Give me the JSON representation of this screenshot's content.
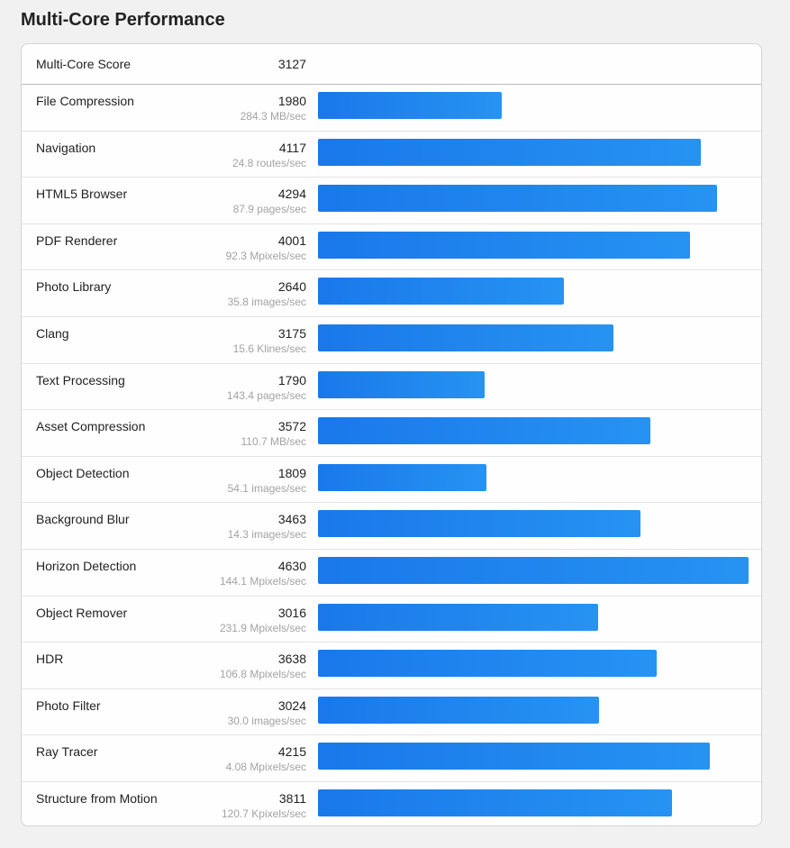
{
  "title": "Multi-Core Performance",
  "score": {
    "label": "Multi-Core Score",
    "value": "3127"
  },
  "max_value": 4630,
  "bar_color_start": "#1a78ea",
  "bar_color_end": "#2693f2",
  "rows": [
    {
      "name": "File Compression",
      "score": "1980",
      "rate": "284.3 MB/sec"
    },
    {
      "name": "Navigation",
      "score": "4117",
      "rate": "24.8 routes/sec"
    },
    {
      "name": "HTML5 Browser",
      "score": "4294",
      "rate": "87.9 pages/sec"
    },
    {
      "name": "PDF Renderer",
      "score": "4001",
      "rate": "92.3 Mpixels/sec"
    },
    {
      "name": "Photo Library",
      "score": "2640",
      "rate": "35.8 images/sec"
    },
    {
      "name": "Clang",
      "score": "3175",
      "rate": "15.6 Klines/sec"
    },
    {
      "name": "Text Processing",
      "score": "1790",
      "rate": "143.4 pages/sec"
    },
    {
      "name": "Asset Compression",
      "score": "3572",
      "rate": "110.7 MB/sec"
    },
    {
      "name": "Object Detection",
      "score": "1809",
      "rate": "54.1 images/sec"
    },
    {
      "name": "Background Blur",
      "score": "3463",
      "rate": "14.3 images/sec"
    },
    {
      "name": "Horizon Detection",
      "score": "4630",
      "rate": "144.1 Mpixels/sec"
    },
    {
      "name": "Object Remover",
      "score": "3016",
      "rate": "231.9 Mpixels/sec"
    },
    {
      "name": "HDR",
      "score": "3638",
      "rate": "106.8 Mpixels/sec"
    },
    {
      "name": "Photo Filter",
      "score": "3024",
      "rate": "30.0 images/sec"
    },
    {
      "name": "Ray Tracer",
      "score": "4215",
      "rate": "4.08 Mpixels/sec"
    },
    {
      "name": "Structure from Motion",
      "score": "3811",
      "rate": "120.7 Kpixels/sec"
    }
  ]
}
